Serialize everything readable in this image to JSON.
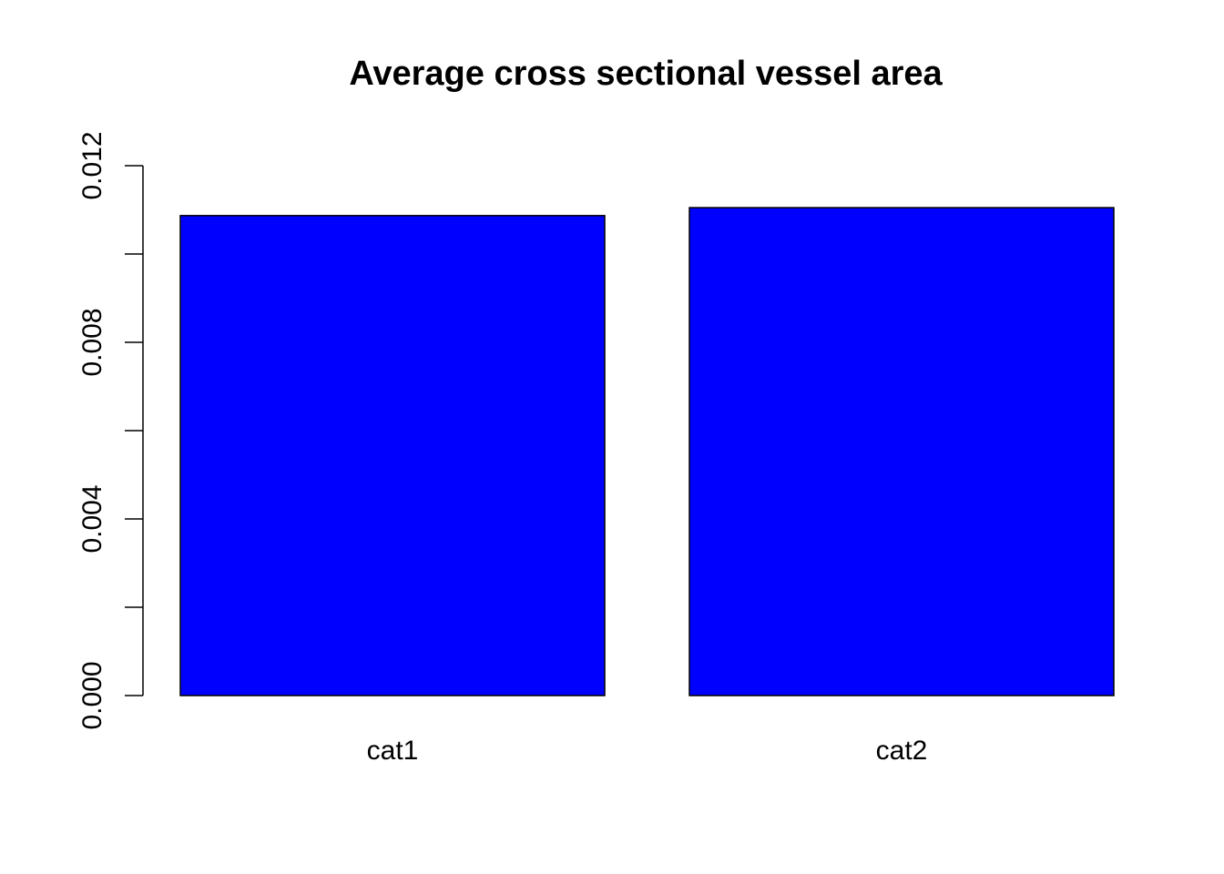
{
  "chart_data": {
    "type": "bar",
    "title": "Average cross sectional vessel area",
    "xlabel": "",
    "ylabel": "",
    "categories": [
      "cat1",
      "cat2"
    ],
    "values": [
      0.01087,
      0.01105
    ],
    "ylim": [
      0,
      0.012
    ],
    "y_ticks": [
      0,
      0.002,
      0.004,
      0.006,
      0.008,
      0.01,
      0.012
    ],
    "y_tick_labels": [
      {
        "value": 0,
        "label": "0.000"
      },
      {
        "value": 0.004,
        "label": "0.004"
      },
      {
        "value": 0.008,
        "label": "0.008"
      },
      {
        "value": 0.012,
        "label": "0.012"
      }
    ],
    "bar_color": "#0000ff",
    "grid": false,
    "legend": "none"
  }
}
